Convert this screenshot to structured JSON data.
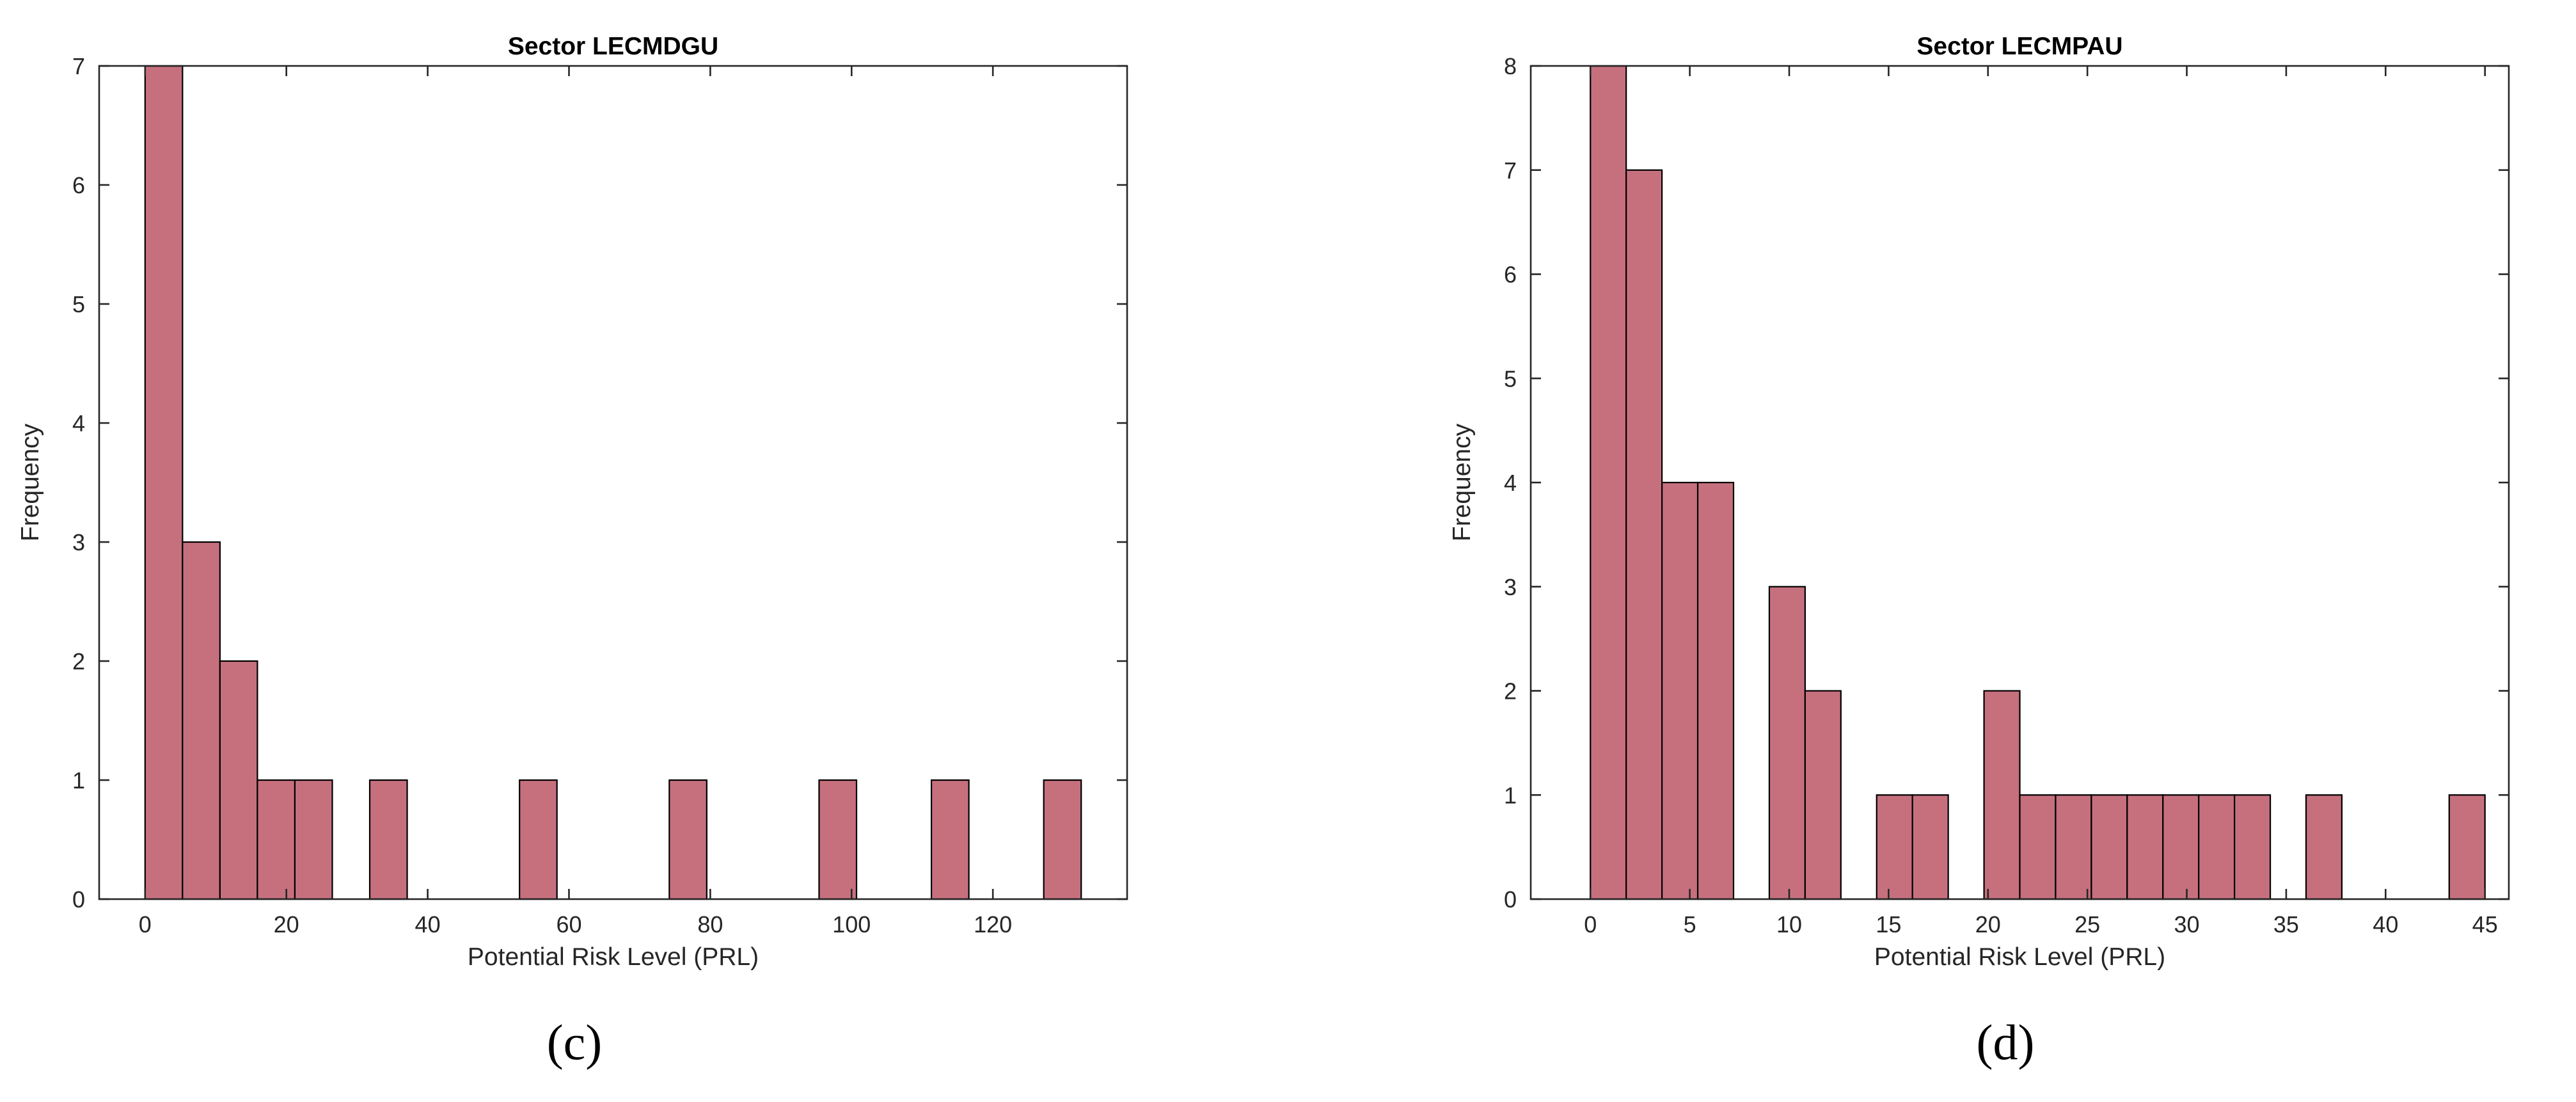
{
  "colors": {
    "bar_fill": "#c6707e",
    "bar_edge": "#000000",
    "axis": "#262626"
  },
  "chart_data": [
    {
      "type": "bar",
      "title": "Sector LECMDGU",
      "xlabel": "Potential Risk Level (PRL)",
      "ylabel": "Frequency",
      "panel_label": "(c)",
      "xlim": [
        -6.5,
        139
      ],
      "ylim": [
        0,
        7
      ],
      "xticks": [
        0,
        20,
        40,
        60,
        80,
        100,
        120
      ],
      "yticks": [
        0,
        1,
        2,
        3,
        4,
        5,
        6,
        7
      ],
      "grid": false,
      "bins": [
        {
          "x0": 0.0,
          "x1": 5.3,
          "count": 7
        },
        {
          "x0": 5.3,
          "x1": 10.6,
          "count": 3
        },
        {
          "x0": 10.6,
          "x1": 15.9,
          "count": 2
        },
        {
          "x0": 15.9,
          "x1": 21.2,
          "count": 1
        },
        {
          "x0": 21.2,
          "x1": 26.5,
          "count": 1
        },
        {
          "x0": 31.8,
          "x1": 37.1,
          "count": 1
        },
        {
          "x0": 53.0,
          "x1": 58.3,
          "count": 1
        },
        {
          "x0": 74.2,
          "x1": 79.5,
          "count": 1
        },
        {
          "x0": 95.4,
          "x1": 100.7,
          "count": 1
        },
        {
          "x0": 111.3,
          "x1": 116.6,
          "count": 1
        },
        {
          "x0": 127.2,
          "x1": 132.5,
          "count": 1
        }
      ]
    },
    {
      "type": "bar",
      "title": "Sector LECMPAU",
      "xlabel": "Potential Risk Level (PRL)",
      "ylabel": "Frequency",
      "panel_label": "(d)",
      "xlim": [
        -3.0,
        46.2
      ],
      "ylim": [
        0,
        8
      ],
      "xticks": [
        0,
        5,
        10,
        15,
        20,
        25,
        30,
        35,
        40,
        45
      ],
      "yticks": [
        0,
        1,
        2,
        3,
        4,
        5,
        6,
        7,
        8
      ],
      "grid": false,
      "bins": [
        {
          "x0": 0.0,
          "x1": 1.8,
          "count": 8
        },
        {
          "x0": 1.8,
          "x1": 3.6,
          "count": 7
        },
        {
          "x0": 3.6,
          "x1": 5.4,
          "count": 4
        },
        {
          "x0": 5.4,
          "x1": 7.2,
          "count": 4
        },
        {
          "x0": 9.0,
          "x1": 10.8,
          "count": 3
        },
        {
          "x0": 10.8,
          "x1": 12.6,
          "count": 2
        },
        {
          "x0": 14.4,
          "x1": 16.2,
          "count": 1
        },
        {
          "x0": 16.2,
          "x1": 18.0,
          "count": 1
        },
        {
          "x0": 19.8,
          "x1": 21.6,
          "count": 2
        },
        {
          "x0": 21.6,
          "x1": 23.4,
          "count": 1
        },
        {
          "x0": 23.4,
          "x1": 25.2,
          "count": 1
        },
        {
          "x0": 25.2,
          "x1": 27.0,
          "count": 1
        },
        {
          "x0": 27.0,
          "x1": 28.8,
          "count": 1
        },
        {
          "x0": 28.8,
          "x1": 30.6,
          "count": 1
        },
        {
          "x0": 30.6,
          "x1": 32.4,
          "count": 1
        },
        {
          "x0": 32.4,
          "x1": 34.2,
          "count": 1
        },
        {
          "x0": 36.0,
          "x1": 37.8,
          "count": 1
        },
        {
          "x0": 43.2,
          "x1": 45.0,
          "count": 1
        }
      ]
    }
  ]
}
